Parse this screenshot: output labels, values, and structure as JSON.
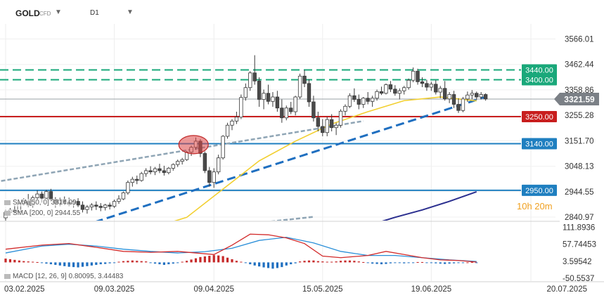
{
  "header": {
    "symbol": "GOLD",
    "instrument_type": "CFD",
    "timeframe": "D1"
  },
  "timer": "10h 20m",
  "price_axis": {
    "ticks": [
      {
        "label": "3566.01",
        "v": 3566.01
      },
      {
        "label": "3462.44",
        "v": 3462.44
      },
      {
        "label": "3358.86",
        "v": 3358.86
      },
      {
        "label": "3255.28",
        "v": 3255.28
      },
      {
        "label": "3151.70",
        "v": 3151.7
      },
      {
        "label": "3048.13",
        "v": 3048.13
      },
      {
        "label": "2944.55",
        "v": 2944.55
      },
      {
        "label": "2840.97",
        "v": 2840.97
      }
    ]
  },
  "macd_axis": {
    "ticks": [
      {
        "label": "111.8936",
        "v": 111.8936
      },
      {
        "label": "57.74453",
        "v": 57.74453
      },
      {
        "label": "3.59542",
        "v": 3.59542
      },
      {
        "label": "-50.5537",
        "v": -50.5537
      }
    ]
  },
  "levels": [
    {
      "label": "3440.00",
      "v": 3440.0,
      "color": "#1aa87a",
      "style": "dashed"
    },
    {
      "label": "3400.00",
      "v": 3400.0,
      "color": "#1aa87a",
      "style": "dashed"
    },
    {
      "label": "3250.00",
      "v": 3250.0,
      "color": "#c81e1e",
      "style": "solid"
    },
    {
      "label": "3140.00",
      "v": 3140.0,
      "color": "#1f7fc0",
      "style": "solid"
    },
    {
      "label": "2950.00",
      "v": 2950.0,
      "color": "#1f7fc0",
      "style": "solid"
    }
  ],
  "current_price": {
    "label": "3321.59",
    "v": 3321.59
  },
  "legends": {
    "sma_fast": "SMA [50, 0] 3314.09",
    "sma_slow": "SMA [200, 0] 2944.55",
    "macd": "MACD [12, 26, 9] 0.80095, 3.44483"
  },
  "chart_data": [
    {
      "type": "candlestick",
      "title": "GOLD",
      "x_labels": [
        "03.02.2025",
        "09.03.2025",
        "09.04.2025",
        "15.05.2025",
        "19.06.2025",
        "20.07.2025"
      ],
      "x_label_index": [
        0,
        24,
        46,
        70,
        94,
        116
      ],
      "ylim": [
        2800,
        3600
      ],
      "series": [
        {
          "name": "SMA [50, 0] 3314.09",
          "color": "#f2cf2f",
          "values": [
            [
              32,
              2795
            ],
            [
              40,
              2840
            ],
            [
              48,
              2955
            ],
            [
              56,
              3070
            ],
            [
              64,
              3150
            ],
            [
              72,
              3220
            ],
            [
              80,
              3270
            ],
            [
              88,
              3315
            ],
            [
              96,
              3330
            ],
            [
              104,
              3314
            ]
          ]
        },
        {
          "name": "SMA [200, 0] 2944.55",
          "color": "#2b2f8f",
          "values": [
            [
              78,
              2795
            ],
            [
              86,
              2840
            ],
            [
              92,
              2870
            ],
            [
              98,
              2905
            ],
            [
              104,
              2944
            ]
          ]
        }
      ],
      "trendlines": [
        {
          "from": [
            -1,
            2988
          ],
          "to": [
            79,
            3232
          ],
          "style": "dashed-gray"
        },
        {
          "from": [
            17,
            2805
          ],
          "to": [
            106,
            3330
          ],
          "style": "dashed-blue"
        }
      ],
      "highlight": {
        "cx": 41.5,
        "cy": 3136
      },
      "ohlc": [
        [
          2838,
          2872,
          2825,
          2860
        ],
        [
          2860,
          2878,
          2848,
          2870
        ],
        [
          2870,
          2890,
          2855,
          2862
        ],
        [
          2862,
          2902,
          2858,
          2895
        ],
        [
          2895,
          2918,
          2888,
          2905
        ],
        [
          2905,
          2935,
          2882,
          2890
        ],
        [
          2890,
          2928,
          2880,
          2920
        ],
        [
          2920,
          2950,
          2910,
          2935
        ],
        [
          2935,
          2945,
          2900,
          2918
        ],
        [
          2918,
          2952,
          2915,
          2945
        ],
        [
          2945,
          2956,
          2905,
          2912
        ],
        [
          2912,
          2922,
          2880,
          2898
        ],
        [
          2898,
          2920,
          2885,
          2912
        ],
        [
          2912,
          2925,
          2890,
          2902
        ],
        [
          2902,
          2920,
          2885,
          2895
        ],
        [
          2895,
          2912,
          2880,
          2905
        ],
        [
          2905,
          2918,
          2882,
          2890
        ],
        [
          2890,
          2905,
          2860,
          2872
        ],
        [
          2872,
          2890,
          2855,
          2882
        ],
        [
          2882,
          2898,
          2868,
          2890
        ],
        [
          2890,
          2905,
          2870,
          2885
        ],
        [
          2885,
          2898,
          2865,
          2880
        ],
        [
          2880,
          2895,
          2868,
          2890
        ],
        [
          2890,
          2900,
          2872,
          2885
        ],
        [
          2885,
          2912,
          2878,
          2905
        ],
        [
          2905,
          2930,
          2895,
          2915
        ],
        [
          2915,
          2945,
          2910,
          2940
        ],
        [
          2940,
          2990,
          2932,
          2982
        ],
        [
          2982,
          3005,
          2965,
          2995
        ],
        [
          2995,
          3010,
          2975,
          2990
        ],
        [
          2990,
          3025,
          2985,
          3018
        ],
        [
          3018,
          3040,
          3005,
          3030
        ],
        [
          3030,
          3048,
          3015,
          3025
        ],
        [
          3025,
          3045,
          3012,
          3038
        ],
        [
          3038,
          3058,
          3020,
          3030
        ],
        [
          3030,
          3050,
          3010,
          3022
        ],
        [
          3022,
          3045,
          3015,
          3040
        ],
        [
          3040,
          3060,
          3030,
          3055
        ],
        [
          3055,
          3075,
          3045,
          3068
        ],
        [
          3068,
          3082,
          3055,
          3075
        ],
        [
          3075,
          3110,
          3070,
          3105
        ],
        [
          3105,
          3132,
          3090,
          3125
        ],
        [
          3125,
          3165,
          3115,
          3150
        ],
        [
          3150,
          3158,
          3085,
          3100
        ],
        [
          3100,
          3108,
          3020,
          3030
        ],
        [
          3030,
          3045,
          2965,
          2982
        ],
        [
          2982,
          3040,
          2960,
          3025
        ],
        [
          3025,
          3095,
          3015,
          3082
        ],
        [
          3082,
          3175,
          3075,
          3170
        ],
        [
          3170,
          3225,
          3160,
          3215
        ],
        [
          3215,
          3240,
          3195,
          3232
        ],
        [
          3232,
          3270,
          3220,
          3248
        ],
        [
          3248,
          3340,
          3240,
          3328
        ],
        [
          3328,
          3385,
          3315,
          3368
        ],
        [
          3368,
          3435,
          3355,
          3428
        ],
        [
          3428,
          3500,
          3380,
          3395
        ],
        [
          3395,
          3410,
          3290,
          3320
        ],
        [
          3320,
          3360,
          3280,
          3345
        ],
        [
          3345,
          3380,
          3300,
          3312
        ],
        [
          3312,
          3350,
          3290,
          3330
        ],
        [
          3330,
          3355,
          3270,
          3285
        ],
        [
          3285,
          3320,
          3225,
          3245
        ],
        [
          3245,
          3295,
          3235,
          3285
        ],
        [
          3285,
          3310,
          3260,
          3270
        ],
        [
          3270,
          3335,
          3255,
          3330
        ],
        [
          3330,
          3425,
          3322,
          3415
        ],
        [
          3415,
          3440,
          3370,
          3385
        ],
        [
          3385,
          3402,
          3290,
          3310
        ],
        [
          3310,
          3335,
          3230,
          3245
        ],
        [
          3245,
          3270,
          3190,
          3210
        ],
        [
          3210,
          3240,
          3170,
          3185
        ],
        [
          3185,
          3250,
          3170,
          3238
        ],
        [
          3238,
          3260,
          3190,
          3205
        ],
        [
          3205,
          3225,
          3175,
          3215
        ],
        [
          3215,
          3280,
          3205,
          3272
        ],
        [
          3272,
          3300,
          3255,
          3292
        ],
        [
          3292,
          3345,
          3285,
          3335
        ],
        [
          3335,
          3365,
          3310,
          3320
        ],
        [
          3320,
          3340,
          3280,
          3300
        ],
        [
          3300,
          3330,
          3285,
          3325
        ],
        [
          3325,
          3350,
          3300,
          3312
        ],
        [
          3312,
          3335,
          3290,
          3325
        ],
        [
          3325,
          3360,
          3315,
          3352
        ],
        [
          3352,
          3372,
          3338,
          3345
        ],
        [
          3345,
          3385,
          3340,
          3380
        ],
        [
          3380,
          3395,
          3350,
          3362
        ],
        [
          3362,
          3378,
          3335,
          3345
        ],
        [
          3345,
          3365,
          3320,
          3355
        ],
        [
          3355,
          3375,
          3340,
          3368
        ],
        [
          3368,
          3405,
          3360,
          3398
        ],
        [
          3398,
          3450,
          3390,
          3435
        ],
        [
          3435,
          3445,
          3380,
          3392
        ],
        [
          3392,
          3410,
          3370,
          3385
        ],
        [
          3385,
          3400,
          3355,
          3370
        ],
        [
          3370,
          3392,
          3355,
          3382
        ],
        [
          3382,
          3398,
          3340,
          3350
        ],
        [
          3350,
          3375,
          3325,
          3365
        ],
        [
          3365,
          3395,
          3315,
          3322
        ],
        [
          3322,
          3350,
          3305,
          3340
        ],
        [
          3340,
          3355,
          3285,
          3300
        ],
        [
          3300,
          3325,
          3265,
          3275
        ],
        [
          3275,
          3330,
          3268,
          3322
        ],
        [
          3322,
          3352,
          3310,
          3338
        ],
        [
          3338,
          3358,
          3320,
          3345
        ],
        [
          3345,
          3352,
          3318,
          3330
        ],
        [
          3330,
          3350,
          3320,
          3340
        ],
        [
          3340,
          3345,
          3315,
          3322
        ]
      ]
    },
    {
      "type": "macd",
      "title": "MACD [12, 26, 9] 0.80095, 3.44483",
      "ylim": [
        -60,
        115
      ],
      "macd": [
        [
          0,
          42
        ],
        [
          8,
          55
        ],
        [
          14,
          60
        ],
        [
          20,
          48
        ],
        [
          26,
          35
        ],
        [
          32,
          32
        ],
        [
          38,
          35
        ],
        [
          42,
          30
        ],
        [
          46,
          25
        ],
        [
          50,
          55
        ],
        [
          54,
          90
        ],
        [
          58,
          88
        ],
        [
          62,
          78
        ],
        [
          66,
          60
        ],
        [
          70,
          20
        ],
        [
          74,
          15
        ],
        [
          80,
          22
        ],
        [
          84,
          35
        ],
        [
          88,
          25
        ],
        [
          92,
          15
        ],
        [
          96,
          8
        ],
        [
          100,
          6
        ],
        [
          104,
          1
        ]
      ],
      "signal": [
        [
          0,
          30
        ],
        [
          8,
          52
        ],
        [
          14,
          58
        ],
        [
          20,
          52
        ],
        [
          26,
          42
        ],
        [
          32,
          35
        ],
        [
          38,
          30
        ],
        [
          44,
          34
        ],
        [
          50,
          45
        ],
        [
          56,
          70
        ],
        [
          62,
          80
        ],
        [
          68,
          62
        ],
        [
          74,
          35
        ],
        [
          80,
          22
        ],
        [
          86,
          22
        ],
        [
          92,
          15
        ],
        [
          98,
          8
        ],
        [
          104,
          3
        ]
      ],
      "histogram": [
        12,
        10,
        8,
        6,
        4,
        3,
        2,
        1,
        -2,
        -4,
        -6,
        -8,
        -10,
        -12,
        -14,
        -15,
        -16,
        -14,
        -12,
        -10,
        -8,
        -6,
        -5,
        -3,
        -2,
        2,
        4,
        5,
        6,
        5,
        4,
        3,
        -2,
        -4,
        -6,
        -8,
        -6,
        -4,
        -2,
        2,
        5,
        9,
        13,
        17,
        19,
        21,
        23,
        22,
        20,
        15,
        10,
        5,
        2,
        -2,
        -6,
        -10,
        -13,
        -16,
        -18,
        -20,
        -18,
        -15,
        -10,
        -6,
        -3,
        3,
        5,
        6,
        6,
        4,
        3,
        2,
        2,
        3,
        5,
        6,
        6,
        5,
        3,
        1,
        -2,
        -4,
        -5,
        -6,
        -5,
        -3,
        -1,
        -2,
        -3,
        -2,
        -1,
        1,
        1,
        -1,
        -2,
        -3,
        -4,
        -5,
        -4,
        -3,
        -2,
        -1,
        0,
        1,
        -1
      ]
    }
  ]
}
